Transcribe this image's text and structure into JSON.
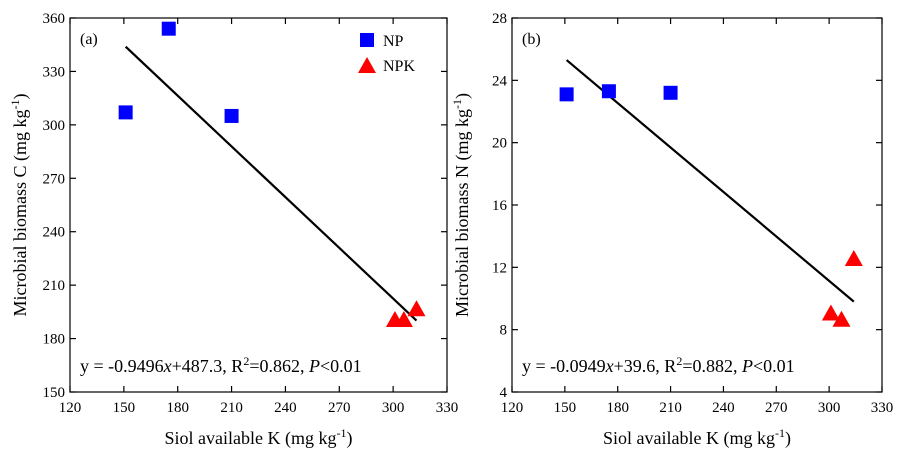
{
  "chart_data": [
    {
      "type": "scatter",
      "panel_label": "(a)",
      "xlabel": {
        "text": "Siol available K (mg kg",
        "sup": "-1",
        "suffix": ")"
      },
      "ylabel": {
        "text": "Microbial biomass C (mg kg",
        "sup": "-1",
        "suffix": ")"
      },
      "xlim": [
        120,
        330
      ],
      "ylim": [
        150,
        360
      ],
      "xticks": [
        120,
        150,
        180,
        210,
        240,
        270,
        300,
        330
      ],
      "yticks": [
        150,
        180,
        210,
        240,
        270,
        300,
        330,
        360
      ],
      "grid": false,
      "legend_position": "top-right",
      "series": [
        {
          "name": "NP",
          "marker": "square",
          "color": "#0000FF",
          "points": [
            [
              151,
              307
            ],
            [
              175,
              354
            ],
            [
              210,
              305
            ]
          ]
        },
        {
          "name": "NPK",
          "marker": "triangle",
          "color": "#FF0000",
          "points": [
            [
              301,
              191
            ],
            [
              306,
              191
            ],
            [
              313,
              197
            ]
          ]
        }
      ],
      "fit_line": {
        "x": [
          151,
          313
        ],
        "y": [
          343.9,
          190.1
        ],
        "color": "#000000"
      },
      "equation": {
        "prefix": "y = -0.9496",
        "var": "x",
        "rest": "+487.3,  R",
        "r2sup": "2",
        "r2val": "=0.862, ",
        "p": "P",
        "pval": "<0.01"
      }
    },
    {
      "type": "scatter",
      "panel_label": "(b)",
      "xlabel": {
        "text": "Siol available K (mg kg",
        "sup": "-1",
        "suffix": ")"
      },
      "ylabel": {
        "text": "Microbial biomass N (mg kg",
        "sup": "-1",
        "suffix": ")"
      },
      "xlim": [
        120,
        330
      ],
      "ylim": [
        4,
        28
      ],
      "xticks": [
        120,
        150,
        180,
        210,
        240,
        270,
        300,
        330
      ],
      "yticks": [
        4,
        8,
        12,
        16,
        20,
        24,
        28
      ],
      "grid": false,
      "series": [
        {
          "name": "NP",
          "marker": "square",
          "color": "#0000FF",
          "points": [
            [
              151,
              23.1
            ],
            [
              175,
              23.3
            ],
            [
              210,
              23.2
            ]
          ]
        },
        {
          "name": "NPK",
          "marker": "triangle",
          "color": "#FF0000",
          "points": [
            [
              301,
              9.1
            ],
            [
              307,
              8.7
            ],
            [
              314,
              12.6
            ]
          ]
        }
      ],
      "fit_line": {
        "x": [
          151,
          314
        ],
        "y": [
          25.3,
          9.8
        ],
        "color": "#000000"
      },
      "equation": {
        "prefix": "y = -0.0949",
        "var": "x",
        "rest": "+39.6,  R",
        "r2sup": "2",
        "r2val": "=0.882, ",
        "p": "P",
        "pval": "<0.01"
      }
    }
  ]
}
